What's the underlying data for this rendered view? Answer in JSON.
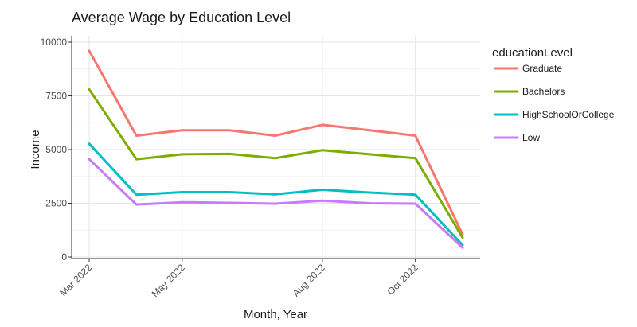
{
  "chart_data": {
    "type": "line",
    "title": "Average Wage by Education Level",
    "xlabel": "Month, Year",
    "ylabel": "Income",
    "x": [
      "2022-03-01",
      "2022-04-01",
      "2022-05-01",
      "2022-06-01",
      "2022-07-01",
      "2022-08-01",
      "2022-09-01",
      "2022-10-01",
      "2022-11-01"
    ],
    "xlim": [
      "2022-03-01",
      "2022-11-01"
    ],
    "ylim": [
      0,
      10000
    ],
    "x_ticks": [
      {
        "x": "2022-03-01",
        "label": "Mar 2022"
      },
      {
        "x": "2022-05-01",
        "label": "May 2022"
      },
      {
        "x": "2022-08-01",
        "label": "Aug 2022"
      },
      {
        "x": "2022-10-01",
        "label": "Oct 2022"
      }
    ],
    "y_ticks": [
      {
        "y": 0,
        "label": "0"
      },
      {
        "y": 2500,
        "label": "2500"
      },
      {
        "y": 5000,
        "label": "5000"
      },
      {
        "y": 7500,
        "label": "7500"
      },
      {
        "y": 10000,
        "label": "10000"
      }
    ],
    "grid": true,
    "legend": {
      "title": "educationLevel",
      "position": "right"
    },
    "series": [
      {
        "name": "Graduate",
        "color": "#F8766D",
        "values": [
          9600,
          5650,
          5900,
          5900,
          5650,
          6150,
          5900,
          5650,
          1050
        ]
      },
      {
        "name": "Bachelors",
        "color": "#7CAE00",
        "values": [
          7800,
          4550,
          4780,
          4800,
          4600,
          4970,
          4780,
          4600,
          900
        ]
      },
      {
        "name": "HighSchoolOrCollege",
        "color": "#00BFC4",
        "values": [
          5270,
          2900,
          3020,
          3020,
          2920,
          3130,
          3000,
          2900,
          550
        ]
      },
      {
        "name": "Low",
        "color": "#C77CFF",
        "values": [
          4550,
          2440,
          2550,
          2520,
          2480,
          2620,
          2500,
          2480,
          430
        ]
      }
    ]
  }
}
